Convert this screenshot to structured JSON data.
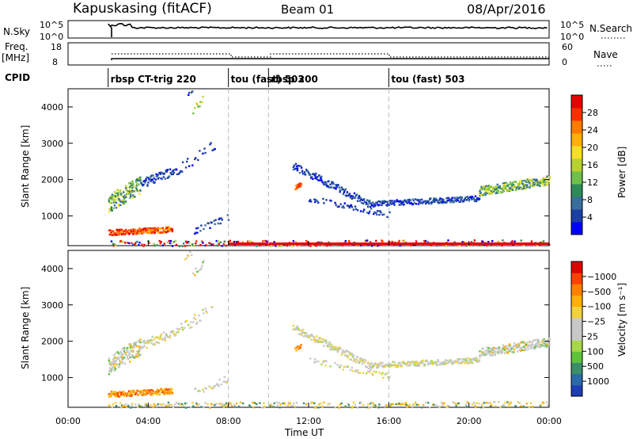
{
  "header": {
    "station": "Kapuskasing (fitACF)",
    "beam": "Beam 01",
    "date": "08/Apr/2016"
  },
  "status_panels": {
    "nsky_label": "N.Sky",
    "nsky_ticks": [
      "10^5",
      "10^0"
    ],
    "nsearch_label": "N.Search",
    "nsearch_ticks": [
      "10^5",
      "10^0"
    ],
    "freq_label_1": "Freq.",
    "freq_label_2": "[MHz]",
    "freq_ticks": [
      "18",
      "8"
    ],
    "nave_label": "Nave",
    "nave_ticks": [
      "60",
      "0"
    ],
    "cpid_label": "CPID",
    "cpid_segments": [
      {
        "label": "rbsp CT-trig 220",
        "start_hour": 2.0
      },
      {
        "label": "tou (fast) 503",
        "start_hour": 8.0
      },
      {
        "label": "rbsp 200",
        "start_hour": 10.0
      },
      {
        "label": "tou (fast) 503",
        "start_hour": 16.0
      }
    ]
  },
  "axes": {
    "ylabel": "Slant Range [km]",
    "xlabel": "Time UT",
    "x_ticks": [
      "00:00",
      "04:00",
      "08:00",
      "12:00",
      "16:00",
      "20:00",
      "00:00"
    ],
    "y_ticks": [
      "1000",
      "2000",
      "3000",
      "4000"
    ]
  },
  "colorbars": {
    "power": {
      "label": "Power [dB]",
      "ticks": [
        "4",
        "8",
        "12",
        "16",
        "20",
        "24",
        "28"
      ],
      "colors": [
        "#0000ff",
        "#1c3fa6",
        "#3a6e9c",
        "#2e8b57",
        "#6fbf4a",
        "#b8d030",
        "#f4e020",
        "#ffb000",
        "#ff7a00",
        "#ff3000",
        "#e60000"
      ]
    },
    "velocity": {
      "label": "Velocity [m s⁻¹]",
      "ticks": [
        "1000",
        "500",
        "100",
        "25",
        "−25",
        "−100",
        "−500",
        "−1000"
      ],
      "colors": [
        "#1e3cb4",
        "#2a6aa8",
        "#3a8f6a",
        "#5ec23c",
        "#a8d84a",
        "#c8c8c8",
        "#c8c8c8",
        "#f2d23c",
        "#ffb000",
        "#ff8000",
        "#ff4000",
        "#e00000"
      ]
    }
  },
  "chart_data": [
    {
      "type": "heatmap",
      "title": "Power",
      "xlabel": "Time UT",
      "ylabel": "Slant Range [km]",
      "xlim": [
        0,
        24
      ],
      "ylim": [
        180,
        4500
      ],
      "colorbar_label": "Power [dB]",
      "colorbar_range": [
        0,
        30
      ],
      "features": [
        {
          "name": "early echo band",
          "t_start": 2.0,
          "t_end": 5.2,
          "range_start_km": 1300,
          "range_end_km": 2100,
          "value": 14
        },
        {
          "name": "rising band",
          "t_start": 5.2,
          "t_end": 7.4,
          "range_start_km": 2100,
          "range_end_km": 3000,
          "value": 8
        },
        {
          "name": "near-range patch",
          "t_start": 2.0,
          "t_end": 5.0,
          "range_start_km": 600,
          "range_end_km": 600,
          "value": 24
        },
        {
          "name": "post-midnight band",
          "t_start": 11.2,
          "t_end": 15.0,
          "range_start_km": 2400,
          "range_end_km": 1300,
          "value": 8
        },
        {
          "name": "evening band",
          "t_start": 15.0,
          "t_end": 24.0,
          "range_start_km": 1300,
          "range_end_km": 2000,
          "value": 12
        }
      ]
    },
    {
      "type": "heatmap",
      "title": "Velocity",
      "xlabel": "Time UT",
      "ylabel": "Slant Range [km]",
      "xlim": [
        0,
        24
      ],
      "ylim": [
        180,
        4500
      ],
      "colorbar_label": "Velocity [m s⁻¹]",
      "colorbar_range": [
        -1000,
        1000
      ],
      "features": [
        {
          "name": "early echo band",
          "t_start": 2.0,
          "t_end": 5.2,
          "range_start_km": 1300,
          "range_end_km": 2100,
          "value": 0
        },
        {
          "name": "near-range patch",
          "t_start": 2.0,
          "t_end": 5.0,
          "range_start_km": 600,
          "range_end_km": 600,
          "value": -200
        },
        {
          "name": "evening band",
          "t_start": 15.0,
          "t_end": 24.0,
          "range_start_km": 1300,
          "range_end_km": 2000,
          "value": 0
        }
      ]
    }
  ]
}
